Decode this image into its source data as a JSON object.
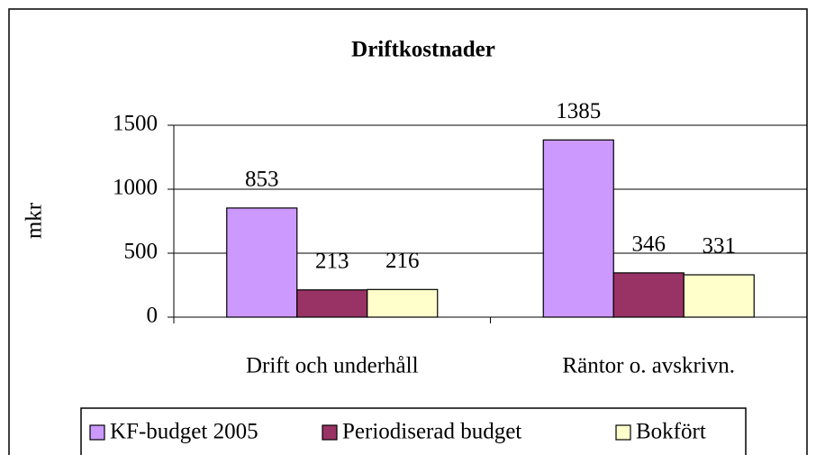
{
  "chart_data": {
    "type": "bar",
    "title": "Driftkostnader",
    "y_label": "mkr",
    "categories": [
      "Drift och underhåll",
      "Räntor o. avskrivn."
    ],
    "series": [
      {
        "name": "KF-budget 2005",
        "color": "#cc99ff",
        "values": [
          853,
          1385
        ]
      },
      {
        "name": "Periodiserad budget",
        "color": "#993366",
        "values": [
          213,
          346
        ]
      },
      {
        "name": "Bokfört",
        "color": "#ffffcc",
        "values": [
          216,
          331
        ]
      }
    ],
    "ylim": [
      0,
      1500
    ],
    "yticks": [
      0,
      500,
      1000,
      1500
    ],
    "grid": true,
    "legend": "bottom"
  }
}
